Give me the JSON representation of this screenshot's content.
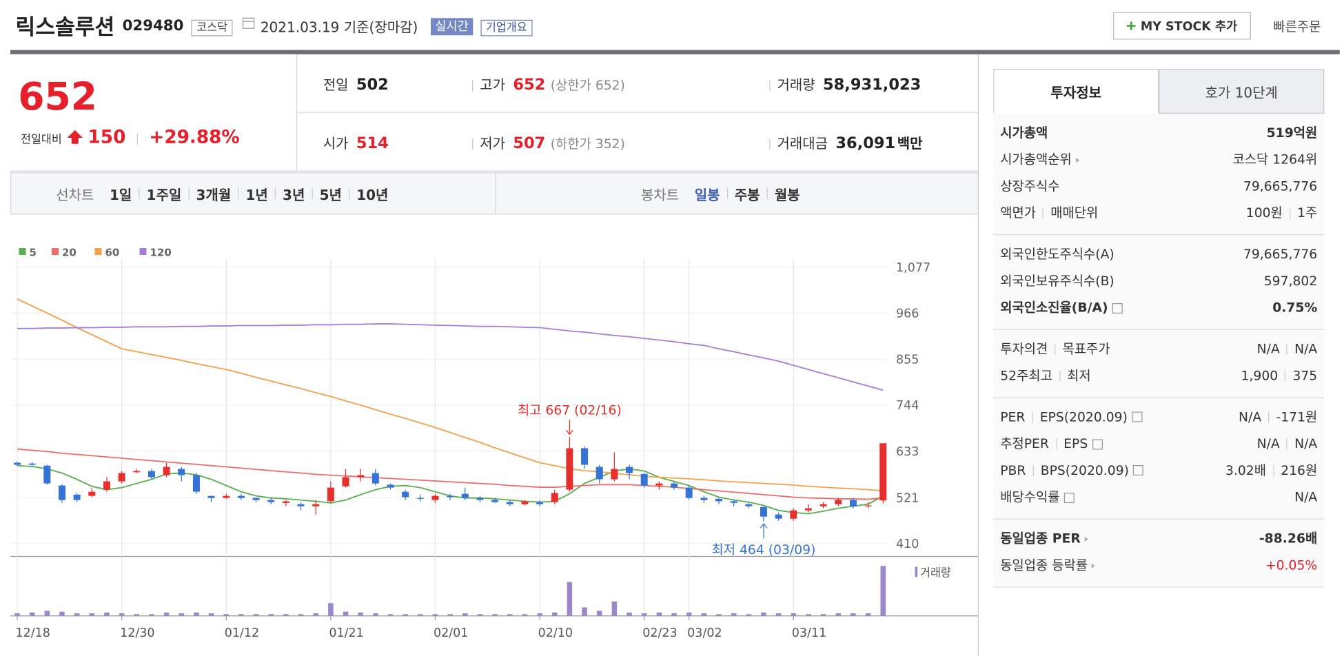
{
  "header": {
    "name": "릭스솔루션",
    "code": "029480",
    "market": "코스닥",
    "date": "2021.03.19 기준(장마감)",
    "realtime": "실시간",
    "overview": "기업개요",
    "mystock": "MY STOCK 추가",
    "quick": "빠른주문"
  },
  "quote": {
    "price": "652",
    "change_label": "전일대비",
    "change": "150",
    "rate": "+29.88%",
    "color": "#e5202b",
    "items": [
      [
        {
          "label": "전일",
          "value": "502"
        },
        {
          "label": "고가",
          "value": "652",
          "note": "(상한가 652)",
          "up": true
        },
        {
          "label": "거래량",
          "value": "58,931,023"
        }
      ],
      [
        {
          "label": "시가",
          "value": "514",
          "up": true
        },
        {
          "label": "저가",
          "value": "507",
          "note": "(하한가 352)",
          "up": true
        },
        {
          "label": "거래대금",
          "value": "36,091",
          "unit": "백만"
        }
      ]
    ]
  },
  "chart_tabs": {
    "line_label": "선차트",
    "line": [
      "1일",
      "1주일",
      "3개월",
      "1년",
      "3년",
      "5년",
      "10년"
    ],
    "candle_label": "봉차트",
    "candle": [
      "일봉",
      "주봉",
      "월봉"
    ],
    "candle_active": 0
  },
  "chart_data": {
    "type": "candlestick",
    "categories": [
      "12/18",
      null,
      null,
      null,
      null,
      null,
      null,
      "12/30",
      null,
      null,
      null,
      null,
      null,
      null,
      "01/12",
      null,
      null,
      null,
      null,
      null,
      null,
      "01/21",
      null,
      null,
      null,
      null,
      null,
      null,
      "02/01",
      null,
      null,
      null,
      null,
      null,
      null,
      "02/10",
      null,
      null,
      null,
      null,
      null,
      null,
      "02/23",
      null,
      null,
      "03/02",
      null,
      null,
      null,
      null,
      null,
      null,
      "03/11",
      null,
      null,
      null,
      null,
      null,
      null
    ],
    "open": [
      605,
      603,
      598,
      550,
      528,
      525,
      540,
      560,
      582,
      585,
      575,
      590,
      575,
      525,
      520,
      525,
      520,
      515,
      508,
      505,
      500,
      512,
      548,
      570,
      580,
      552,
      535,
      520,
      515,
      525,
      530,
      520,
      515,
      510,
      505,
      510,
      510,
      540,
      640,
      595,
      565,
      595,
      578,
      550,
      555,
      545,
      520,
      518,
      512,
      505,
      498,
      480,
      470,
      490,
      500,
      505,
      515,
      500,
      514
    ],
    "high": [
      608,
      606,
      600,
      553,
      532,
      545,
      570,
      585,
      590,
      590,
      605,
      595,
      580,
      525,
      530,
      530,
      522,
      520,
      515,
      510,
      515,
      560,
      590,
      590,
      590,
      555,
      540,
      528,
      530,
      530,
      545,
      525,
      520,
      515,
      515,
      515,
      540,
      667,
      645,
      600,
      630,
      600,
      580,
      560,
      560,
      550,
      525,
      520,
      515,
      510,
      500,
      485,
      495,
      505,
      510,
      520,
      520,
      510,
      652
    ],
    "low": [
      597,
      595,
      552,
      508,
      510,
      522,
      535,
      555,
      580,
      565,
      570,
      560,
      530,
      510,
      518,
      515,
      510,
      505,
      500,
      490,
      480,
      508,
      545,
      560,
      550,
      540,
      515,
      512,
      508,
      515,
      515,
      510,
      508,
      500,
      502,
      500,
      505,
      535,
      590,
      555,
      560,
      565,
      545,
      540,
      540,
      515,
      508,
      505,
      500,
      495,
      464,
      465,
      465,
      485,
      495,
      500,
      495,
      495,
      507
    ],
    "close": [
      600,
      600,
      555,
      515,
      515,
      535,
      560,
      580,
      585,
      570,
      595,
      575,
      535,
      520,
      525,
      520,
      515,
      510,
      512,
      500,
      505,
      545,
      570,
      575,
      555,
      545,
      522,
      518,
      525,
      522,
      520,
      515,
      510,
      505,
      512,
      505,
      532,
      640,
      600,
      565,
      590,
      580,
      550,
      555,
      545,
      520,
      515,
      512,
      508,
      500,
      475,
      470,
      490,
      495,
      505,
      515,
      500,
      502,
      652
    ],
    "up_color": "#e5302d",
    "down_color": "#3574d6",
    "series": [
      {
        "name": "5",
        "color": "#59b04e",
        "values": [
          598,
          596,
          590,
          580,
          565,
          548,
          540,
          545,
          555,
          565,
          578,
          580,
          576,
          565,
          550,
          535,
          525,
          520,
          518,
          515,
          512,
          508,
          515,
          528,
          540,
          548,
          550,
          545,
          535,
          525,
          520,
          520,
          518,
          515,
          512,
          510,
          512,
          530,
          555,
          570,
          585,
          590,
          585,
          570,
          560,
          550,
          535,
          522,
          515,
          510,
          502,
          490,
          485,
          482,
          488,
          495,
          500,
          505,
          525
        ]
      },
      {
        "name": "20",
        "color": "#ec6b6b",
        "values": [
          638,
          635,
          632,
          628,
          625,
          622,
          619,
          616,
          613,
          610,
          607,
          604,
          601,
          598,
          595,
          592,
          589,
          586,
          583,
          580,
          577,
          575,
          573,
          571,
          569,
          567,
          565,
          563,
          561,
          559,
          557,
          555,
          553,
          550,
          548,
          546,
          546,
          548,
          550,
          552,
          552,
          552,
          550,
          548,
          546,
          543,
          540,
          537,
          534,
          531,
          528,
          525,
          522,
          520,
          519,
          518,
          518,
          517,
          520
        ]
      },
      {
        "name": "60",
        "color": "#f5a04b",
        "values": [
          1000,
          983,
          966,
          949,
          931,
          914,
          897,
          880,
          873,
          866,
          859,
          852,
          844,
          837,
          830,
          821,
          811,
          802,
          793,
          784,
          774,
          765,
          754,
          744,
          733,
          722,
          712,
          701,
          690,
          678,
          666,
          654,
          641,
          629,
          617,
          605,
          598,
          590,
          586,
          583,
          579,
          576,
          572,
          570,
          568,
          566,
          564,
          561,
          559,
          557,
          555,
          553,
          551,
          548,
          546,
          544,
          542,
          540,
          537
        ]
      },
      {
        "name": "120",
        "color": "#a77bd9",
        "values": [
          929,
          929,
          930,
          930,
          931,
          931,
          932,
          932,
          933,
          933,
          933,
          934,
          934,
          935,
          935,
          936,
          936,
          936,
          937,
          937,
          938,
          938,
          939,
          939,
          940,
          940,
          939,
          938,
          937,
          936,
          935,
          934,
          934,
          933,
          932,
          931,
          927,
          923,
          920,
          916,
          912,
          909,
          905,
          901,
          897,
          892,
          888,
          880,
          873,
          865,
          858,
          850,
          840,
          830,
          820,
          810,
          800,
          790,
          780
        ]
      }
    ],
    "volume": {
      "name": "거래량",
      "color": "#9b87c9",
      "values": [
        3000000,
        4000000,
        6000000,
        5000000,
        3000000,
        3000000,
        4000000,
        3000000,
        2000000,
        2000000,
        4000000,
        3000000,
        4000000,
        3000000,
        2000000,
        2000000,
        2000000,
        2000000,
        2000000,
        2000000,
        3000000,
        15000000,
        5000000,
        4000000,
        3000000,
        2000000,
        2000000,
        2000000,
        2000000,
        2000000,
        3000000,
        2000000,
        2000000,
        2000000,
        2000000,
        3000000,
        4000000,
        40000000,
        10000000,
        6000000,
        17000000,
        4000000,
        3000000,
        4000000,
        3000000,
        4000000,
        3000000,
        2000000,
        3000000,
        2000000,
        4000000,
        3000000,
        3000000,
        2000000,
        2000000,
        3000000,
        3000000,
        3000000,
        58931023
      ]
    },
    "ylim": [
      381,
      1098
    ],
    "yticks": [
      410,
      521,
      633,
      744,
      855,
      966,
      {
        "value": 1077,
        "label": "1,077"
      }
    ],
    "grid": true,
    "annotations": {
      "high": "최고 667 (02/16)",
      "low": "최저 464 (03/09)"
    }
  },
  "side": {
    "tabs": [
      "투자정보",
      "호가 10단계"
    ],
    "groups": [
      [
        {
          "label": [
            "시가총액"
          ],
          "value": [
            "519억원"
          ],
          "bold": true
        },
        {
          "label": [
            "시가총액순위"
          ],
          "value": [
            "코스닥 1264위"
          ],
          "arrow": true
        },
        {
          "label": [
            "상장주식수"
          ],
          "value": [
            "79,665,776"
          ]
        },
        {
          "label": [
            "액면가",
            "매매단위"
          ],
          "value": [
            "100원",
            "1주"
          ]
        }
      ],
      [
        {
          "label": [
            "외국인한도주식수(A)"
          ],
          "value": [
            "79,665,776"
          ]
        },
        {
          "label": [
            "외국인보유주식수(B)"
          ],
          "value": [
            "597,802"
          ]
        },
        {
          "label": [
            "외국인소진율(B/A)"
          ],
          "value": [
            "0.75%"
          ],
          "bold": true,
          "help": true
        }
      ],
      [
        {
          "label": [
            "투자의견",
            "목표주가"
          ],
          "value": [
            "N/A",
            "N/A"
          ]
        },
        {
          "label": [
            "52주최고",
            "최저"
          ],
          "value": [
            "1,900",
            "375"
          ]
        }
      ],
      [
        {
          "label": [
            "PER",
            "EPS(2020.09)"
          ],
          "value": [
            "N/A",
            "-171원"
          ],
          "help": true
        },
        {
          "label": [
            "추정PER",
            "EPS"
          ],
          "value": [
            "N/A",
            "N/A"
          ],
          "help": true
        },
        {
          "label": [
            "PBR",
            "BPS(2020.09)"
          ],
          "value": [
            "3.02배",
            "216원"
          ],
          "help": true
        },
        {
          "label": [
            "배당수익률"
          ],
          "value": [
            "N/A"
          ],
          "help": true
        }
      ],
      [
        {
          "label": [
            "동일업종 PER"
          ],
          "value": [
            "-88.26배"
          ],
          "bold": true,
          "arrow": true
        },
        {
          "label": [
            "동일업종 등락률"
          ],
          "value": [
            "+0.05%"
          ],
          "arrow": true,
          "color": "#e5202b"
        }
      ]
    ]
  }
}
